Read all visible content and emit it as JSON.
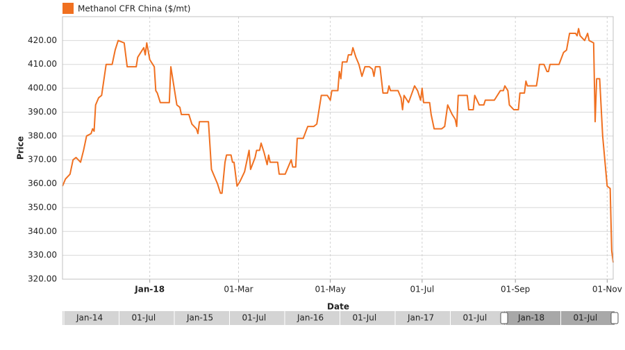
{
  "chart_data": {
    "type": "line",
    "y_label": "Price",
    "x_label": "Date",
    "legend": "top-left",
    "grid": true,
    "ylim": [
      320,
      430
    ],
    "yticks": [
      {
        "value": 320,
        "label": "320.00"
      },
      {
        "value": 330,
        "label": "330.00"
      },
      {
        "value": 340,
        "label": "340.00"
      },
      {
        "value": 350,
        "label": "350.00"
      },
      {
        "value": 360,
        "label": "360.00"
      },
      {
        "value": 370,
        "label": "370.00"
      },
      {
        "value": 380,
        "label": "380.00"
      },
      {
        "value": 390,
        "label": "390.00"
      },
      {
        "value": 400,
        "label": "400.00"
      },
      {
        "value": 410,
        "label": "410.00"
      },
      {
        "value": 420,
        "label": "420.00"
      }
    ],
    "xlim": [
      "2017-11-04",
      "2018-11-05"
    ],
    "xticks": [
      {
        "value": "2018-01-01",
        "label": "Jan-18"
      },
      {
        "value": "2018-03-01",
        "label": "01-Mar"
      },
      {
        "value": "2018-05-01",
        "label": "01-May"
      },
      {
        "value": "2018-07-01",
        "label": "01-Jul"
      },
      {
        "value": "2018-09-01",
        "label": "01-Sep"
      },
      {
        "value": "2018-11-01",
        "label": "01-Nov"
      }
    ],
    "x": [
      "2017-11-04",
      "2017-11-06",
      "2017-11-09",
      "2017-11-11",
      "2017-11-13",
      "2017-11-16",
      "2017-11-18",
      "2017-11-20",
      "2017-11-23",
      "2017-11-24",
      "2017-11-25",
      "2017-11-26",
      "2017-11-28",
      "2017-11-30",
      "2017-12-03",
      "2017-12-07",
      "2017-12-09",
      "2017-12-11",
      "2017-12-15",
      "2017-12-17",
      "2017-12-23",
      "2017-12-24",
      "2017-12-28",
      "2017-12-29",
      "2017-12-30",
      "2018-01-01",
      "2018-01-04",
      "2018-01-05",
      "2018-01-06",
      "2018-01-08",
      "2018-01-14",
      "2018-01-15",
      "2018-01-17",
      "2018-01-19",
      "2018-01-21",
      "2018-01-22",
      "2018-01-27",
      "2018-01-29",
      "2018-02-01",
      "2018-02-02",
      "2018-02-03",
      "2018-02-09",
      "2018-02-11",
      "2018-02-15",
      "2018-02-17",
      "2018-02-18",
      "2018-02-20",
      "2018-02-21",
      "2018-02-24",
      "2018-02-25",
      "2018-02-26",
      "2018-02-28",
      "2018-03-02",
      "2018-03-05",
      "2018-03-08",
      "2018-03-09",
      "2018-03-12",
      "2018-03-13",
      "2018-03-15",
      "2018-03-16",
      "2018-03-18",
      "2018-03-20",
      "2018-03-21",
      "2018-03-22",
      "2018-03-27",
      "2018-03-28",
      "2018-04-01",
      "2018-04-05",
      "2018-04-06",
      "2018-04-08",
      "2018-04-09",
      "2018-04-13",
      "2018-04-16",
      "2018-04-20",
      "2018-04-22",
      "2018-04-25",
      "2018-04-29",
      "2018-05-01",
      "2018-05-02",
      "2018-05-06",
      "2018-05-07",
      "2018-05-08",
      "2018-05-09",
      "2018-05-12",
      "2018-05-13",
      "2018-05-15",
      "2018-05-16",
      "2018-05-18",
      "2018-05-20",
      "2018-05-22",
      "2018-05-24",
      "2018-05-27",
      "2018-05-29",
      "2018-05-30",
      "2018-05-31",
      "2018-06-03",
      "2018-06-05",
      "2018-06-08",
      "2018-06-09",
      "2018-06-10",
      "2018-06-15",
      "2018-06-17",
      "2018-06-18",
      "2018-06-19",
      "2018-06-22",
      "2018-06-26",
      "2018-06-28",
      "2018-06-30",
      "2018-07-01",
      "2018-07-02",
      "2018-07-06",
      "2018-07-07",
      "2018-07-09",
      "2018-07-14",
      "2018-07-16",
      "2018-07-18",
      "2018-07-21",
      "2018-07-23",
      "2018-07-24",
      "2018-07-25",
      "2018-07-31",
      "2018-08-01",
      "2018-08-04",
      "2018-08-05",
      "2018-08-08",
      "2018-08-11",
      "2018-08-12",
      "2018-08-18",
      "2018-08-22",
      "2018-08-24",
      "2018-08-25",
      "2018-08-27",
      "2018-08-28",
      "2018-08-31",
      "2018-09-03",
      "2018-09-04",
      "2018-09-07",
      "2018-09-08",
      "2018-09-09",
      "2018-09-15",
      "2018-09-16",
      "2018-09-17",
      "2018-09-20",
      "2018-09-22",
      "2018-09-23",
      "2018-09-24",
      "2018-09-30",
      "2018-10-03",
      "2018-10-05",
      "2018-10-07",
      "2018-10-11",
      "2018-10-12",
      "2018-10-13",
      "2018-10-14",
      "2018-10-17",
      "2018-10-19",
      "2018-10-20",
      "2018-10-23",
      "2018-10-24",
      "2018-10-25",
      "2018-10-27",
      "2018-10-29",
      "2018-11-01",
      "2018-11-03",
      "2018-11-04",
      "2018-11-05"
    ],
    "series": [
      {
        "name": "Methanol CFR China ($/mt)",
        "color": "#f07020",
        "values": [
          359,
          362,
          364,
          370,
          371,
          369,
          374,
          380,
          381,
          383,
          382,
          393,
          396,
          397,
          410,
          410,
          416,
          420,
          419,
          409,
          409,
          413,
          417,
          414,
          419,
          412,
          409,
          399,
          398,
          394,
          394,
          409,
          401,
          393,
          392,
          389,
          389,
          385,
          383,
          381,
          386,
          386,
          366,
          360,
          356,
          356,
          369,
          372,
          372,
          369,
          369,
          359,
          361,
          365,
          374,
          366,
          371,
          374,
          374,
          377,
          373,
          368,
          372,
          369,
          369,
          364,
          364,
          370,
          367,
          367,
          379,
          379,
          384,
          384,
          385,
          397,
          397,
          395,
          399,
          399,
          407,
          404,
          411,
          411,
          414,
          414,
          417,
          413,
          410,
          405,
          409,
          409,
          408,
          405,
          409,
          409,
          398,
          398,
          401,
          399,
          399,
          396,
          391,
          397,
          394,
          401,
          399,
          395,
          400,
          394,
          394,
          389,
          383,
          383,
          384,
          393,
          389,
          387,
          384,
          397,
          397,
          391,
          391,
          397,
          393,
          393,
          395,
          395,
          399,
          399,
          401,
          399,
          393,
          391,
          391,
          398,
          398,
          403,
          401,
          401,
          405,
          410,
          410,
          407,
          407,
          410,
          410,
          415,
          416,
          423,
          423,
          422,
          425,
          422,
          420,
          423,
          420,
          419,
          386,
          404,
          404,
          380,
          359,
          358,
          332,
          327
        ]
      }
    ],
    "navigator_labels": [
      "Jan-14",
      "01-Jul",
      "Jan-15",
      "01-Jul",
      "Jan-16",
      "01-Jul",
      "Jan-17",
      "01-Jul",
      "Jan-18",
      "01-Jul"
    ]
  }
}
